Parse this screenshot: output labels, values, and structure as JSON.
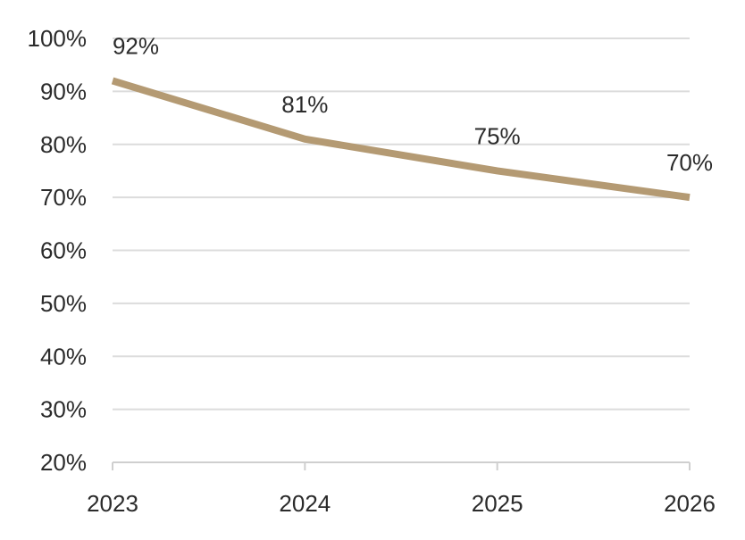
{
  "chart_data": {
    "type": "line",
    "categories": [
      "2023",
      "2024",
      "2025",
      "2026"
    ],
    "series": [
      {
        "values": [
          92,
          81,
          75,
          70
        ],
        "color": "#b49a73"
      }
    ],
    "data_labels": [
      "92%",
      "81%",
      "75%",
      "70%"
    ],
    "yticks": [
      20,
      30,
      40,
      50,
      60,
      70,
      80,
      90,
      100
    ],
    "ytick_labels": [
      "20%",
      "30%",
      "40%",
      "50%",
      "60%",
      "70%",
      "80%",
      "90%",
      "100%"
    ],
    "ylim": [
      20,
      100
    ],
    "grid": true,
    "legend": "none"
  }
}
